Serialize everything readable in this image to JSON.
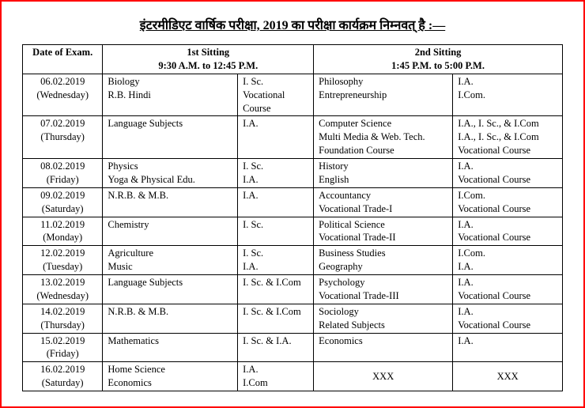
{
  "title": "इंटरमीडिएट वार्षिक परीक्षा, 2019 का परीक्षा कार्यक्रम निम्नवत् है :—",
  "headers": {
    "date": "Date of Exam.",
    "sit1": "1st Sitting",
    "sit1_time": "9:30 A.M. to 12:45 P.M.",
    "sit2": "2nd Sitting",
    "sit2_time": "1:45 P.M. to 5:00 P.M."
  },
  "rows": [
    {
      "date": "06.02.2019",
      "day": "(Wednesday)",
      "s1": [
        "Biology",
        "R.B. Hindi"
      ],
      "c1": [
        "I. Sc.",
        "Vocational Course"
      ],
      "s2": [
        "Philosophy",
        "Entrepreneurship"
      ],
      "c2": [
        "I.A.",
        "I.Com."
      ]
    },
    {
      "date": "07.02.2019",
      "day": "(Thursday)",
      "s1": [
        "Language Subjects"
      ],
      "c1": [
        "I.A."
      ],
      "s2": [
        "Computer Science",
        "Multi Media & Web. Tech.",
        "Foundation Course"
      ],
      "c2": [
        "I.A., I. Sc., & I.Com",
        "I.A., I. Sc., & I.Com",
        "Vocational Course"
      ]
    },
    {
      "date": "08.02.2019",
      "day": "(Friday)",
      "s1": [
        "Physics",
        "Yoga & Physical Edu."
      ],
      "c1": [
        "I. Sc.",
        "I.A."
      ],
      "s2": [
        "History",
        "English"
      ],
      "c2": [
        "I.A.",
        "Vocational Course"
      ]
    },
    {
      "date": "09.02.2019",
      "day": "(Saturday)",
      "s1": [
        "N.R.B. & M.B."
      ],
      "c1": [
        "I.A."
      ],
      "s2": [
        "Accountancy",
        "Vocational Trade-I"
      ],
      "c2": [
        "I.Com.",
        "Vocational Course"
      ]
    },
    {
      "date": "11.02.2019",
      "day": "(Monday)",
      "s1": [
        "Chemistry"
      ],
      "c1": [
        "I. Sc."
      ],
      "s2": [
        "Political Science",
        "Vocational Trade-II"
      ],
      "c2": [
        "I.A.",
        "Vocational Course"
      ]
    },
    {
      "date": "12.02.2019",
      "day": "(Tuesday)",
      "s1": [
        "Agriculture",
        "Music"
      ],
      "c1": [
        "I. Sc.",
        "I.A."
      ],
      "s2": [
        "Business Studies",
        "Geography"
      ],
      "c2": [
        "I.Com.",
        "I.A."
      ]
    },
    {
      "date": "13.02.2019",
      "day": "(Wednesday)",
      "s1": [
        "Language Subjects"
      ],
      "c1": [
        "I. Sc. & I.Com"
      ],
      "s2": [
        "Psychology",
        "Vocational Trade-III"
      ],
      "c2": [
        "I.A.",
        "Vocational Course"
      ]
    },
    {
      "date": "14.02.2019",
      "day": "(Thursday)",
      "s1": [
        "N.R.B. & M.B."
      ],
      "c1": [
        "I. Sc. & I.Com"
      ],
      "s2": [
        "Sociology",
        "Related Subjects"
      ],
      "c2": [
        "I.A.",
        "Vocational Course"
      ]
    },
    {
      "date": "15.02.2019",
      "day": "(Friday)",
      "s1": [
        "Mathematics"
      ],
      "c1": [
        "I. Sc. & I.A."
      ],
      "s2": [
        "Economics"
      ],
      "c2": [
        "I.A."
      ]
    },
    {
      "date": "16.02.2019",
      "day": "(Saturday)",
      "s1": [
        "Home Science",
        "Economics"
      ],
      "c1": [
        "I.A.",
        "I.Com"
      ],
      "s2_xxx": "XXX",
      "c2_xxx": "XXX"
    }
  ]
}
